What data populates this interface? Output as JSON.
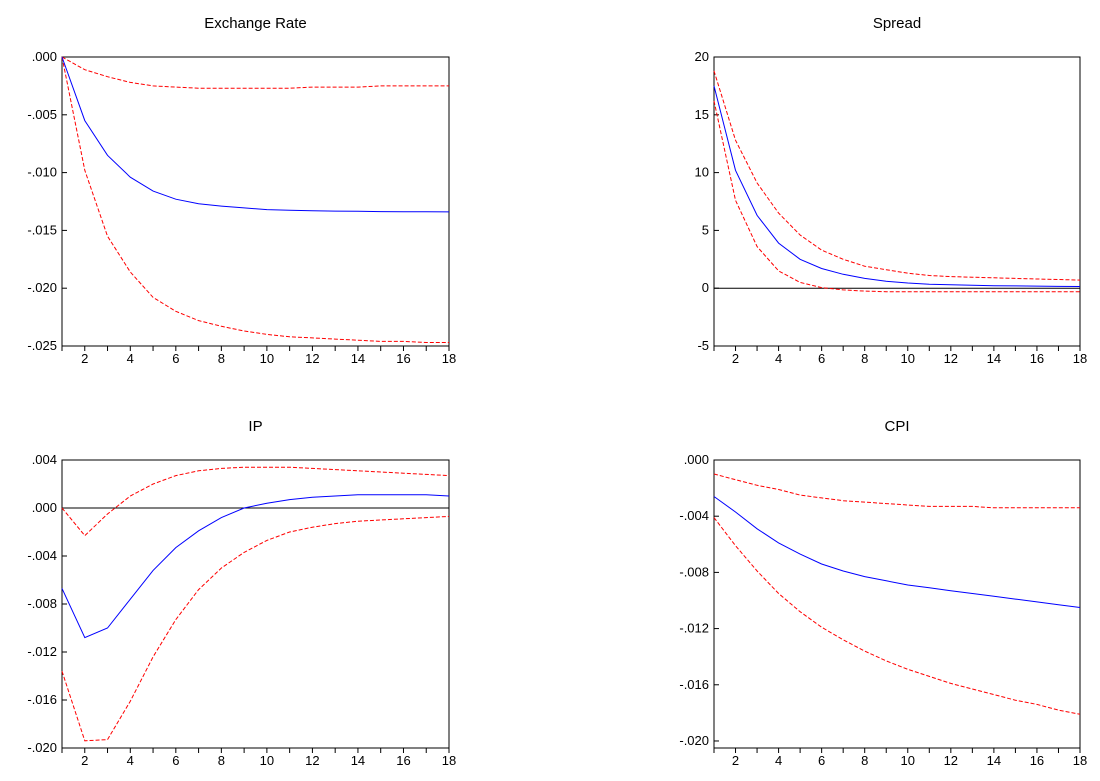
{
  "chart_data": [
    {
      "type": "line",
      "title": "Exchange Rate",
      "x": [
        1,
        2,
        3,
        4,
        5,
        6,
        7,
        8,
        9,
        10,
        11,
        12,
        13,
        14,
        15,
        16,
        17,
        18
      ],
      "xticks": [
        2,
        4,
        6,
        8,
        10,
        12,
        14,
        16,
        18
      ],
      "ylim": [
        -0.025,
        0.0
      ],
      "yticks": [
        0.0,
        -0.005,
        -0.01,
        -0.015,
        -0.02,
        -0.025
      ],
      "ytick_labels": [
        ".000",
        "-.005",
        "-.010",
        "-.015",
        "-.020",
        "-.025"
      ],
      "zero_line": false,
      "series": [
        {
          "role": "response",
          "color": "#0000ff",
          "dashed": false,
          "values": [
            0.0,
            -0.0055,
            -0.0085,
            -0.0104,
            -0.0116,
            -0.0123,
            -0.0127,
            -0.0129,
            -0.01305,
            -0.0132,
            -0.01325,
            -0.0133,
            -0.01333,
            -0.01335,
            -0.01337,
            -0.01338,
            -0.01339,
            -0.0134
          ]
        },
        {
          "role": "upper",
          "color": "#ff0000",
          "dashed": true,
          "values": [
            0.0,
            -0.0011,
            -0.0017,
            -0.0022,
            -0.0025,
            -0.0026,
            -0.0027,
            -0.0027,
            -0.0027,
            -0.0027,
            -0.0027,
            -0.0026,
            -0.0026,
            -0.0026,
            -0.0025,
            -0.0025,
            -0.0025,
            -0.0025
          ]
        },
        {
          "role": "lower",
          "color": "#ff0000",
          "dashed": true,
          "values": [
            0.0,
            -0.0098,
            -0.0155,
            -0.0186,
            -0.0208,
            -0.022,
            -0.0228,
            -0.0233,
            -0.0237,
            -0.024,
            -0.0242,
            -0.0243,
            -0.0244,
            -0.0245,
            -0.0246,
            -0.0246,
            -0.0247,
            -0.0247
          ]
        }
      ]
    },
    {
      "type": "line",
      "title": "Spread",
      "x": [
        1,
        2,
        3,
        4,
        5,
        6,
        7,
        8,
        9,
        10,
        11,
        12,
        13,
        14,
        15,
        16,
        17,
        18
      ],
      "xticks": [
        2,
        4,
        6,
        8,
        10,
        12,
        14,
        16,
        18
      ],
      "ylim": [
        -5,
        20
      ],
      "yticks": [
        20,
        15,
        10,
        5,
        0,
        -5
      ],
      "ytick_labels": [
        "20",
        "15",
        "10",
        "5",
        "0",
        "-5"
      ],
      "zero_line": true,
      "series": [
        {
          "role": "response",
          "color": "#0000ff",
          "dashed": false,
          "values": [
            17.5,
            10.2,
            6.3,
            3.9,
            2.5,
            1.7,
            1.2,
            0.85,
            0.6,
            0.45,
            0.35,
            0.3,
            0.25,
            0.22,
            0.2,
            0.18,
            0.16,
            0.15
          ]
        },
        {
          "role": "upper",
          "color": "#ff0000",
          "dashed": true,
          "values": [
            18.8,
            12.8,
            9.1,
            6.5,
            4.6,
            3.3,
            2.5,
            1.9,
            1.6,
            1.3,
            1.1,
            1.0,
            0.95,
            0.9,
            0.85,
            0.8,
            0.75,
            0.7
          ]
        },
        {
          "role": "lower",
          "color": "#ff0000",
          "dashed": true,
          "values": [
            16.2,
            7.6,
            3.6,
            1.5,
            0.5,
            0.05,
            -0.15,
            -0.25,
            -0.3,
            -0.3,
            -0.3,
            -0.3,
            -0.3,
            -0.3,
            -0.3,
            -0.3,
            -0.3,
            -0.3
          ]
        }
      ]
    },
    {
      "type": "line",
      "title": "IP",
      "x": [
        1,
        2,
        3,
        4,
        5,
        6,
        7,
        8,
        9,
        10,
        11,
        12,
        13,
        14,
        15,
        16,
        17,
        18
      ],
      "xticks": [
        2,
        4,
        6,
        8,
        10,
        12,
        14,
        16,
        18
      ],
      "ylim": [
        -0.02,
        0.004
      ],
      "yticks": [
        0.004,
        0.0,
        -0.004,
        -0.008,
        -0.012,
        -0.016,
        -0.02
      ],
      "ytick_labels": [
        ".004",
        ".000",
        "-.004",
        "-.008",
        "-.012",
        "-.016",
        "-.020"
      ],
      "zero_line": true,
      "series": [
        {
          "role": "response",
          "color": "#0000ff",
          "dashed": false,
          "values": [
            -0.0067,
            -0.0108,
            -0.01,
            -0.0076,
            -0.0052,
            -0.0033,
            -0.0019,
            -0.0008,
            0.0,
            0.0004,
            0.0007,
            0.0009,
            0.001,
            0.0011,
            0.0011,
            0.0011,
            0.0011,
            0.001
          ]
        },
        {
          "role": "upper",
          "color": "#ff0000",
          "dashed": true,
          "values": [
            0.0,
            -0.0023,
            -0.0005,
            0.001,
            0.002,
            0.0027,
            0.0031,
            0.0033,
            0.0034,
            0.0034,
            0.0034,
            0.0033,
            0.0032,
            0.0031,
            0.003,
            0.0029,
            0.0028,
            0.0027
          ]
        },
        {
          "role": "lower",
          "color": "#ff0000",
          "dashed": true,
          "values": [
            -0.0136,
            -0.0194,
            -0.0193,
            -0.0161,
            -0.0124,
            -0.0093,
            -0.0068,
            -0.005,
            -0.0037,
            -0.0027,
            -0.002,
            -0.0016,
            -0.0013,
            -0.0011,
            -0.001,
            -0.0009,
            -0.0008,
            -0.0007
          ]
        }
      ]
    },
    {
      "type": "line",
      "title": "CPI",
      "x": [
        1,
        2,
        3,
        4,
        5,
        6,
        7,
        8,
        9,
        10,
        11,
        12,
        13,
        14,
        15,
        16,
        17,
        18
      ],
      "xticks": [
        2,
        4,
        6,
        8,
        10,
        12,
        14,
        16,
        18
      ],
      "ylim": [
        -0.0205,
        0.0
      ],
      "yticks": [
        0.0,
        -0.004,
        -0.008,
        -0.012,
        -0.016,
        -0.02
      ],
      "ytick_labels": [
        ".000",
        "-.004",
        "-.008",
        "-.012",
        "-.016",
        "-.020"
      ],
      "zero_line": false,
      "series": [
        {
          "role": "response",
          "color": "#0000ff",
          "dashed": false,
          "values": [
            -0.0026,
            -0.0037,
            -0.0049,
            -0.0059,
            -0.0067,
            -0.0074,
            -0.0079,
            -0.0083,
            -0.0086,
            -0.0089,
            -0.0091,
            -0.0093,
            -0.0095,
            -0.0097,
            -0.0099,
            -0.0101,
            -0.0103,
            -0.0105
          ]
        },
        {
          "role": "upper",
          "color": "#ff0000",
          "dashed": true,
          "values": [
            -0.001,
            -0.0014,
            -0.0018,
            -0.0021,
            -0.0025,
            -0.0027,
            -0.0029,
            -0.003,
            -0.0031,
            -0.0032,
            -0.0033,
            -0.0033,
            -0.0033,
            -0.0034,
            -0.0034,
            -0.0034,
            -0.0034,
            -0.0034
          ]
        },
        {
          "role": "lower",
          "color": "#ff0000",
          "dashed": true,
          "values": [
            -0.0041,
            -0.0061,
            -0.0079,
            -0.0095,
            -0.0108,
            -0.0119,
            -0.0128,
            -0.0136,
            -0.0143,
            -0.0149,
            -0.0154,
            -0.0159,
            -0.0163,
            -0.0167,
            -0.0171,
            -0.0174,
            -0.0178,
            -0.0181
          ]
        }
      ]
    }
  ]
}
